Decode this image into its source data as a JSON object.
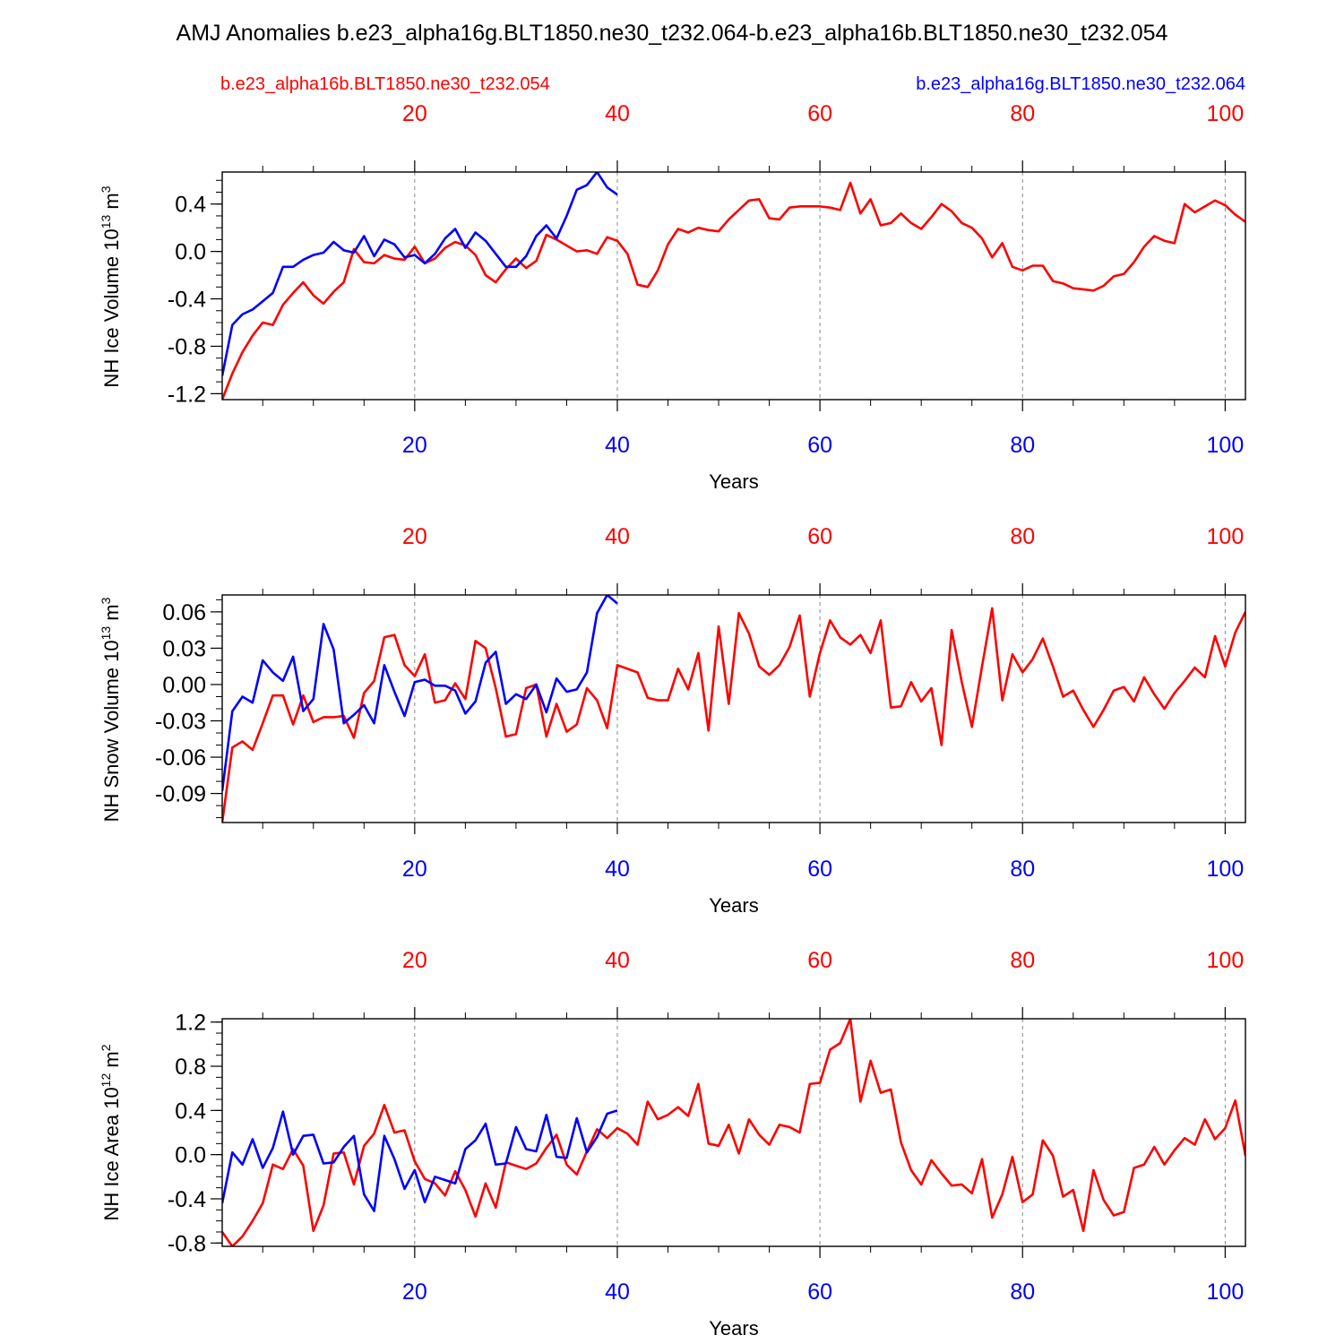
{
  "title": "AMJ Anomalies b.e23_alpha16g.BLT1850.ne30_t232.064-b.e23_alpha16b.BLT1850.ne30_t232.054",
  "legend": {
    "red_label": "b.e23_alpha16b.BLT1850.ne30_t232.054",
    "blue_label": "b.e23_alpha16g.BLT1850.ne30_t232.064"
  },
  "colors": {
    "red": "#ff0000",
    "blue": "#0000ff",
    "axis": "#000000",
    "grid": "#888888"
  },
  "chart_data": [
    {
      "type": "line",
      "ylabel": "NH Ice Volume 10",
      "ylabel_sup": "13",
      "ylabel_unit": " m",
      "ylabel_unit_sup": "3",
      "xlabel": "Years",
      "xlim": [
        1,
        102
      ],
      "ylim": [
        -1.25,
        0.67
      ],
      "yticks": [
        -1.2,
        -0.8,
        -0.4,
        0.0,
        0.4
      ],
      "ytick_labels": [
        "-1.2",
        "-0.8",
        "-0.4",
        "0.0",
        "0.4"
      ],
      "yminor": 0.1,
      "xticks": [
        20,
        40,
        60,
        80,
        100
      ],
      "xtick_labels": [
        "20",
        "40",
        "60",
        "80",
        "100"
      ],
      "series": [
        {
          "name": "b.e23_alpha16b.BLT1850.ne30_t232.054",
          "color": "red",
          "x_start": 1,
          "values": [
            -1.25,
            -1.03,
            -0.85,
            -0.71,
            -0.6,
            -0.62,
            -0.45,
            -0.35,
            -0.26,
            -0.37,
            -0.44,
            -0.34,
            -0.26,
            0.02,
            -0.09,
            -0.1,
            -0.03,
            -0.06,
            -0.07,
            0.04,
            -0.1,
            -0.06,
            0.03,
            0.08,
            0.05,
            -0.03,
            -0.2,
            -0.26,
            -0.15,
            -0.06,
            -0.14,
            -0.08,
            0.14,
            0.1,
            0.05,
            0.0,
            0.01,
            -0.02,
            0.12,
            0.09,
            -0.02,
            -0.28,
            -0.3,
            -0.16,
            0.06,
            0.19,
            0.16,
            0.2,
            0.18,
            0.17,
            0.27,
            0.35,
            0.43,
            0.44,
            0.28,
            0.27,
            0.37,
            0.38,
            0.38,
            0.38,
            0.37,
            0.35,
            0.58,
            0.32,
            0.44,
            0.22,
            0.24,
            0.32,
            0.24,
            0.19,
            0.29,
            0.4,
            0.34,
            0.24,
            0.2,
            0.11,
            -0.05,
            0.07,
            -0.13,
            -0.16,
            -0.12,
            -0.12,
            -0.25,
            -0.27,
            -0.31,
            -0.32,
            -0.33,
            -0.29,
            -0.21,
            -0.19,
            -0.09,
            0.04,
            0.13,
            0.09,
            0.07,
            0.4,
            0.33,
            0.38,
            0.43,
            0.39,
            0.31,
            0.25
          ]
        },
        {
          "name": "b.e23_alpha16g.BLT1850.ne30_t232.064",
          "color": "blue",
          "x_start": 1,
          "values": [
            -1.05,
            -0.62,
            -0.53,
            -0.49,
            -0.42,
            -0.35,
            -0.13,
            -0.13,
            -0.07,
            -0.03,
            -0.01,
            0.08,
            0.01,
            -0.01,
            0.13,
            -0.04,
            0.1,
            0.06,
            -0.05,
            -0.03,
            -0.1,
            -0.02,
            0.11,
            0.19,
            0.03,
            0.16,
            0.09,
            -0.02,
            -0.13,
            -0.13,
            -0.04,
            0.13,
            0.22,
            0.11,
            0.3,
            0.52,
            0.56,
            0.67,
            0.54,
            0.48
          ]
        }
      ]
    },
    {
      "type": "line",
      "ylabel": "NH Snow Volume 10",
      "ylabel_sup": "13",
      "ylabel_unit": " m",
      "ylabel_unit_sup": "3",
      "xlabel": "Years",
      "xlim": [
        1,
        102
      ],
      "ylim": [
        -0.114,
        0.074
      ],
      "yticks": [
        -0.09,
        -0.06,
        -0.03,
        0.0,
        0.03,
        0.06
      ],
      "ytick_labels": [
        "-0.09",
        "-0.06",
        "-0.03",
        "0.00",
        "0.03",
        "0.06"
      ],
      "yminor": 0.01,
      "xticks": [
        20,
        40,
        60,
        80,
        100
      ],
      "xtick_labels": [
        "20",
        "40",
        "60",
        "80",
        "100"
      ],
      "series": [
        {
          "name": "b.e23_alpha16b.BLT1850.ne30_t232.054",
          "color": "red",
          "x_start": 1,
          "values": [
            -0.114,
            -0.052,
            -0.047,
            -0.054,
            -0.032,
            -0.009,
            -0.009,
            -0.033,
            -0.009,
            -0.031,
            -0.027,
            -0.027,
            -0.026,
            -0.044,
            -0.007,
            0.003,
            0.039,
            0.041,
            0.016,
            0.007,
            0.025,
            -0.015,
            -0.013,
            0.001,
            -0.012,
            0.036,
            0.03,
            -0.003,
            -0.043,
            -0.041,
            -0.003,
            0.0,
            -0.043,
            -0.016,
            -0.039,
            -0.033,
            -0.003,
            -0.013,
            -0.036,
            0.016,
            0.013,
            0.01,
            -0.011,
            -0.013,
            -0.013,
            0.013,
            -0.004,
            0.026,
            -0.038,
            0.048,
            -0.016,
            0.059,
            0.042,
            0.015,
            0.008,
            0.016,
            0.031,
            0.057,
            -0.01,
            0.026,
            0.053,
            0.039,
            0.033,
            0.041,
            0.026,
            0.053,
            -0.019,
            -0.018,
            0.002,
            -0.014,
            -0.003,
            -0.05,
            0.045,
            0.002,
            -0.035,
            0.015,
            0.063,
            -0.013,
            0.025,
            0.01,
            0.021,
            0.038,
            0.015,
            -0.01,
            -0.005,
            -0.021,
            -0.035,
            -0.021,
            -0.005,
            -0.002,
            -0.014,
            0.006,
            -0.008,
            -0.02,
            -0.007,
            0.003,
            0.014,
            0.006,
            0.04,
            0.015,
            0.043,
            0.06
          ]
        },
        {
          "name": "b.e23_alpha16g.BLT1850.ne30_t232.064",
          "color": "blue",
          "x_start": 1,
          "values": [
            -0.088,
            -0.022,
            -0.01,
            -0.015,
            0.02,
            0.01,
            0.003,
            0.023,
            -0.022,
            -0.012,
            0.05,
            0.029,
            -0.032,
            -0.025,
            -0.017,
            -0.032,
            0.016,
            -0.006,
            -0.026,
            0.002,
            0.004,
            -0.001,
            -0.001,
            -0.005,
            -0.024,
            -0.014,
            0.018,
            0.027,
            -0.016,
            -0.008,
            -0.012,
            0.0,
            -0.023,
            0.005,
            -0.006,
            -0.004,
            0.01,
            0.059,
            0.074,
            0.067
          ]
        }
      ]
    },
    {
      "type": "line",
      "ylabel": "NH Ice Area 10",
      "ylabel_sup": "12",
      "ylabel_unit": " m",
      "ylabel_unit_sup": "2",
      "xlabel": "Years",
      "xlim": [
        1,
        102
      ],
      "ylim": [
        -0.83,
        1.23
      ],
      "yticks": [
        -0.8,
        -0.4,
        0.0,
        0.4,
        0.8,
        1.2
      ],
      "ytick_labels": [
        "-0.8",
        "-0.4",
        "0.0",
        "0.4",
        "0.8",
        "1.2"
      ],
      "yminor": 0.1,
      "xticks": [
        20,
        40,
        60,
        80,
        100
      ],
      "xtick_labels": [
        "20",
        "40",
        "60",
        "80",
        "100"
      ],
      "series": [
        {
          "name": "b.e23_alpha16b.BLT1850.ne30_t232.054",
          "color": "red",
          "x_start": 1,
          "values": [
            -0.7,
            -0.83,
            -0.74,
            -0.6,
            -0.44,
            -0.09,
            -0.13,
            0.05,
            -0.1,
            -0.69,
            -0.46,
            0.01,
            0.02,
            -0.27,
            0.08,
            0.19,
            0.45,
            0.2,
            0.22,
            -0.06,
            -0.22,
            -0.26,
            -0.37,
            -0.15,
            -0.32,
            -0.56,
            -0.26,
            -0.48,
            -0.07,
            -0.1,
            -0.13,
            -0.08,
            0.06,
            0.18,
            -0.09,
            -0.18,
            0.03,
            0.23,
            0.15,
            0.24,
            0.19,
            0.09,
            0.48,
            0.32,
            0.36,
            0.43,
            0.35,
            0.64,
            0.1,
            0.08,
            0.27,
            0.01,
            0.32,
            0.18,
            0.09,
            0.27,
            0.25,
            0.2,
            0.64,
            0.65,
            0.95,
            1.01,
            1.23,
            0.48,
            0.85,
            0.56,
            0.59,
            0.11,
            -0.14,
            -0.27,
            -0.05,
            -0.17,
            -0.28,
            -0.27,
            -0.35,
            -0.04,
            -0.57,
            -0.36,
            -0.02,
            -0.43,
            -0.36,
            0.13,
            -0.01,
            -0.38,
            -0.32,
            -0.69,
            -0.14,
            -0.41,
            -0.55,
            -0.52,
            -0.12,
            -0.09,
            0.07,
            -0.09,
            0.04,
            0.15,
            0.09,
            0.32,
            0.14,
            0.24,
            0.49,
            -0.01
          ]
        },
        {
          "name": "b.e23_alpha16g.BLT1850.ne30_t232.064",
          "color": "blue",
          "x_start": 1,
          "values": [
            -0.44,
            0.02,
            -0.09,
            0.14,
            -0.12,
            0.06,
            0.39,
            0.0,
            0.17,
            0.18,
            -0.08,
            -0.07,
            0.07,
            0.17,
            -0.36,
            -0.51,
            0.17,
            -0.04,
            -0.31,
            -0.14,
            -0.43,
            -0.2,
            -0.23,
            -0.26,
            0.05,
            0.13,
            0.28,
            -0.09,
            -0.08,
            0.25,
            0.05,
            0.03,
            0.36,
            -0.02,
            -0.03,
            0.33,
            0.02,
            0.16,
            0.37,
            0.4
          ]
        }
      ]
    }
  ]
}
